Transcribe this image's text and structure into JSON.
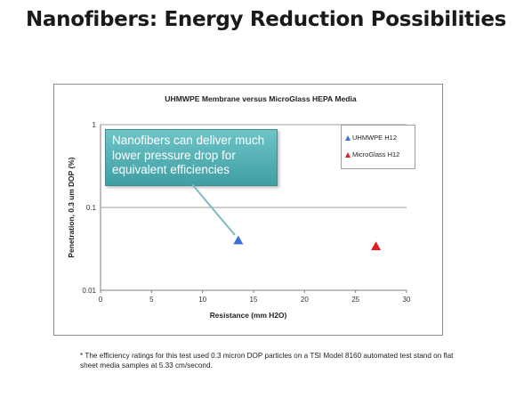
{
  "slide": {
    "title": "Nanofibers: Energy Reduction Possibilities",
    "footnote": "* The efficiency ratings for this test used 0.3 micron DOP particles on a TSI Model 8160 automated test stand on flat sheet media samples at 5.33 cm/second."
  },
  "callout": {
    "text": "Nanofibers can deliver much lower pressure drop for equivalent efficiencies"
  },
  "colors": {
    "uhmwpe": "#3a6fd8",
    "microglass": "#e02020",
    "callout": "#4faeb2",
    "gridline": "#7f7f7f"
  },
  "chart_data": {
    "type": "scatter",
    "title": "UHMWPE Membrane versus MicroGlass HEPA Media",
    "xlabel": "Resistance (mm H2O)",
    "ylabel": "Penetration, 0.3 um DOP (%)",
    "xlim": [
      0,
      30
    ],
    "ylim": [
      0.01,
      1
    ],
    "yscale": "log",
    "x_ticks": [
      "0",
      "5",
      "10",
      "15",
      "20",
      "25",
      "30"
    ],
    "y_ticks": [
      "0.01",
      "0.1",
      "1"
    ],
    "grid": "horizontal",
    "legend_position": "top-right",
    "series": [
      {
        "name": "UHMWPE H12",
        "x": [
          13.5
        ],
        "y": [
          0.04
        ],
        "color": "#3a6fd8",
        "marker": "triangle"
      },
      {
        "name": "MicroGlass H12",
        "x": [
          27.0
        ],
        "y": [
          0.034
        ],
        "color": "#e02020",
        "marker": "triangle"
      }
    ]
  }
}
